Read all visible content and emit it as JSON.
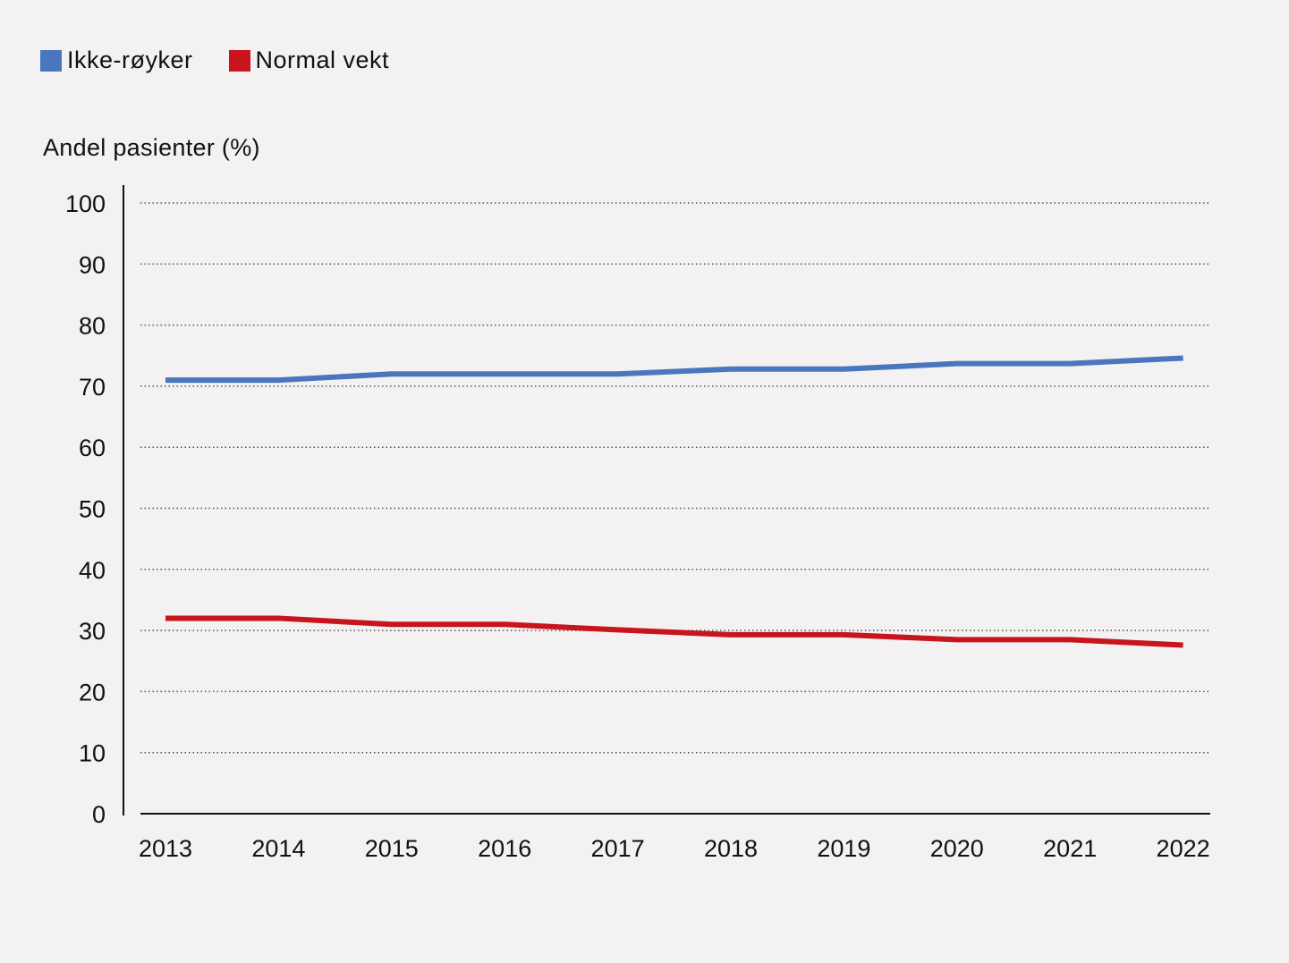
{
  "chart_data": {
    "type": "line",
    "title": "",
    "xlabel": "",
    "ylabel": "Andel pasienter (%)",
    "categories": [
      "2013",
      "2014",
      "2015",
      "2016",
      "2017",
      "2018",
      "2019",
      "2020",
      "2021",
      "2022"
    ],
    "yticks": [
      "0",
      "10",
      "20",
      "30",
      "40",
      "50",
      "60",
      "70",
      "80",
      "90",
      "100"
    ],
    "ylim": [
      0,
      100
    ],
    "grid": "horizontal dotted",
    "legend_position": "top-left",
    "series": [
      {
        "name": "Ikke-røyker",
        "color": "#4a76bd",
        "values": [
          71,
          71,
          72,
          72,
          72,
          72.8,
          72.8,
          73.7,
          73.7,
          74.6
        ]
      },
      {
        "name": "Normal vekt",
        "color": "#c8141c",
        "values": [
          32,
          32,
          31,
          31,
          30.1,
          29.3,
          29.3,
          28.5,
          28.5,
          27.6
        ]
      }
    ]
  }
}
